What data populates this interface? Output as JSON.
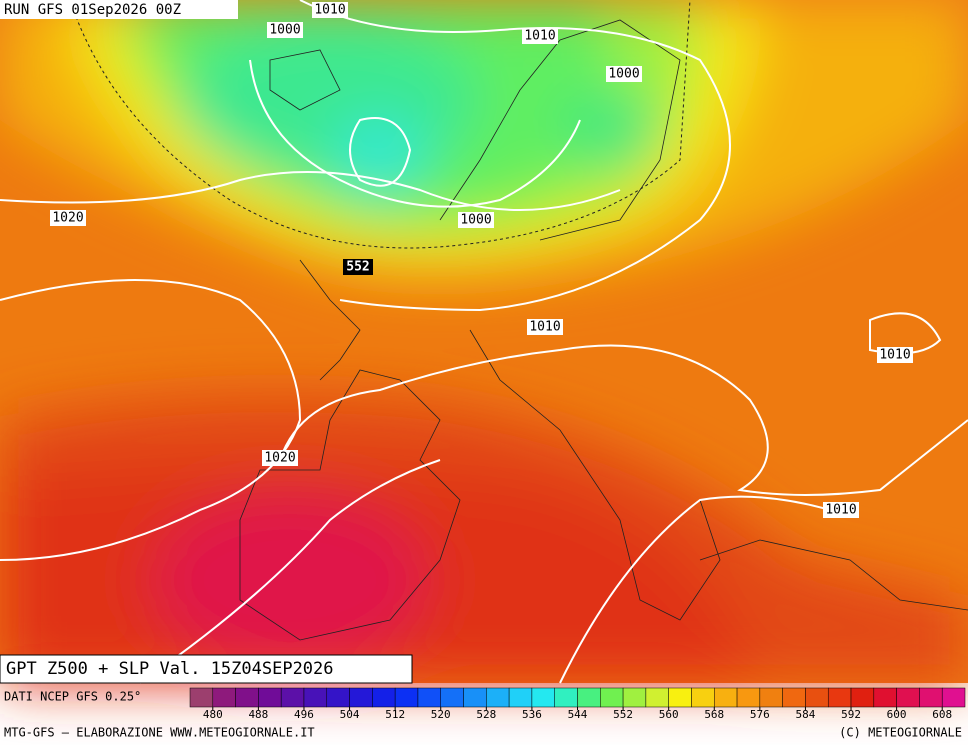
{
  "header": {
    "run": "RUN GFS 01Sep2026 00Z"
  },
  "isobar_labels": [
    1010,
    1000,
    1010,
    1000,
    1020,
    1000,
    1010,
    1010,
    1020,
    1010
  ],
  "height_label": 552,
  "title": "GPT Z500 + SLP Val. 15Z04SEP2026",
  "source": "DATI NCEP GFS 0.25°",
  "colorbar": {
    "lim": [
      476,
      612
    ],
    "ticks": [
      480,
      488,
      496,
      504,
      512,
      520,
      528,
      536,
      544,
      552,
      560,
      568,
      576,
      584,
      592,
      600,
      608
    ],
    "colors": [
      "#9c3f6e",
      "#8e1a7c",
      "#80108a",
      "#700c98",
      "#5c10a8",
      "#4812b8",
      "#3414c8",
      "#2418d8",
      "#1420e8",
      "#0c30f4",
      "#1050f8",
      "#1470f8",
      "#1890f8",
      "#1cb0f8",
      "#20d0f8",
      "#24e8f0",
      "#30f0c0",
      "#48f080",
      "#70f050",
      "#a0f040",
      "#d0f030",
      "#f8f010",
      "#f8d010",
      "#f8b010",
      "#f89810",
      "#f08010",
      "#f06810",
      "#e85010",
      "#e83810",
      "#e02010",
      "#e01030",
      "#e01050",
      "#e01070",
      "#e01090"
    ]
  },
  "footer": {
    "left": "MTG-GFS – ELABORAZIONE WWW.METEOGIORNALE.IT",
    "right": "(C) METEOGIORNALE"
  }
}
